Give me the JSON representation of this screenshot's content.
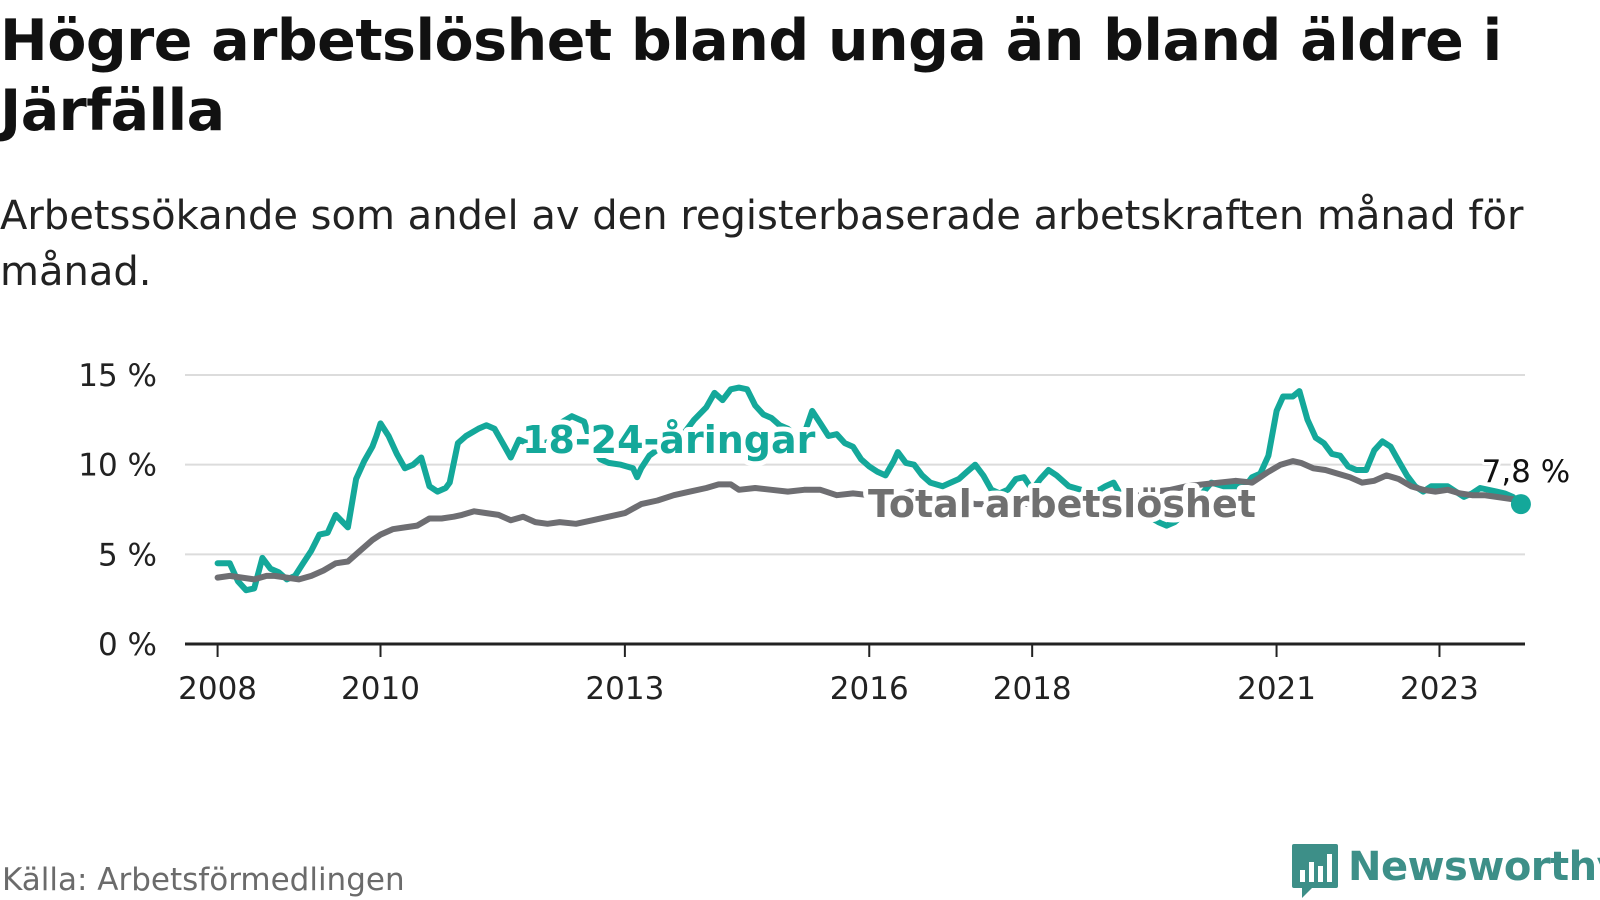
{
  "title": "Högre arbetslöshet bland unga än bland äldre i Järfälla",
  "subtitle": "Arbetssökande som andel av den registerbaserade arbetskraften månad för månad.",
  "source": "Källa: Arbetsförmedlingen",
  "brand": "Newsworthy",
  "colors": {
    "youth": "#14a89a",
    "total": "#6e6e72",
    "grid": "#dcdcdc",
    "axis": "#222222",
    "brand": "#3d8f88"
  },
  "chart_data": {
    "type": "line",
    "title": "Högre arbetslöshet bland unga än bland äldre i Järfälla",
    "xlabel": "",
    "ylabel": "",
    "xlim": [
      2007.6,
      2024.05
    ],
    "ylim": [
      0,
      15
    ],
    "y_ticks": [
      0,
      5,
      10,
      15
    ],
    "y_tick_labels": [
      "0 %",
      "5 %",
      "10 %",
      "15 %"
    ],
    "x_ticks": [
      2008,
      2010,
      2013,
      2016,
      2018,
      2021,
      2023
    ],
    "x_tick_labels": [
      "2008",
      "2010",
      "2013",
      "2016",
      "2018",
      "2021",
      "2023"
    ],
    "grid": true,
    "end_label": "7,8 %",
    "series": [
      {
        "name": "18-24-åringar",
        "points": [
          [
            2008.0,
            4.5
          ],
          [
            2008.15,
            4.5
          ],
          [
            2008.25,
            3.5
          ],
          [
            2008.35,
            3.0
          ],
          [
            2008.45,
            3.1
          ],
          [
            2008.55,
            4.8
          ],
          [
            2008.65,
            4.2
          ],
          [
            2008.75,
            4.0
          ],
          [
            2008.85,
            3.6
          ],
          [
            2008.95,
            3.8
          ],
          [
            2009.05,
            4.5
          ],
          [
            2009.15,
            5.2
          ],
          [
            2009.25,
            6.1
          ],
          [
            2009.35,
            6.2
          ],
          [
            2009.45,
            7.2
          ],
          [
            2009.6,
            6.5
          ],
          [
            2009.7,
            9.2
          ],
          [
            2009.8,
            10.2
          ],
          [
            2009.9,
            11.0
          ],
          [
            2009.95,
            11.6
          ],
          [
            2010.0,
            12.3
          ],
          [
            2010.1,
            11.6
          ],
          [
            2010.2,
            10.6
          ],
          [
            2010.3,
            9.8
          ],
          [
            2010.4,
            10.0
          ],
          [
            2010.5,
            10.4
          ],
          [
            2010.6,
            8.8
          ],
          [
            2010.7,
            8.5
          ],
          [
            2010.8,
            8.7
          ],
          [
            2010.85,
            9.0
          ],
          [
            2010.95,
            11.2
          ],
          [
            2011.05,
            11.6
          ],
          [
            2011.2,
            12.0
          ],
          [
            2011.3,
            12.2
          ],
          [
            2011.4,
            12.0
          ],
          [
            2011.5,
            11.2
          ],
          [
            2011.6,
            10.4
          ],
          [
            2011.7,
            11.4
          ],
          [
            2011.8,
            11.2
          ],
          [
            2011.9,
            11.4
          ],
          [
            2012.0,
            11.2
          ],
          [
            2012.1,
            11.3
          ],
          [
            2012.2,
            12.3
          ],
          [
            2012.35,
            12.7
          ],
          [
            2012.5,
            12.4
          ],
          [
            2012.6,
            11.0
          ],
          [
            2012.7,
            10.3
          ],
          [
            2012.8,
            10.1
          ],
          [
            2012.95,
            10.0
          ],
          [
            2013.1,
            9.8
          ],
          [
            2013.15,
            9.3
          ],
          [
            2013.2,
            9.8
          ],
          [
            2013.3,
            10.5
          ],
          [
            2013.45,
            11.0
          ],
          [
            2013.7,
            11.6
          ],
          [
            2013.85,
            12.5
          ],
          [
            2014.0,
            13.2
          ],
          [
            2014.1,
            14.0
          ],
          [
            2014.2,
            13.6
          ],
          [
            2014.3,
            14.2
          ],
          [
            2014.4,
            14.3
          ],
          [
            2014.5,
            14.2
          ],
          [
            2014.6,
            13.3
          ],
          [
            2014.7,
            12.8
          ],
          [
            2014.8,
            12.6
          ],
          [
            2014.9,
            12.2
          ],
          [
            2015.0,
            12.0
          ],
          [
            2015.1,
            11.6
          ],
          [
            2015.2,
            11.7
          ],
          [
            2015.3,
            13.0
          ],
          [
            2015.4,
            12.3
          ],
          [
            2015.5,
            11.6
          ],
          [
            2015.6,
            11.7
          ],
          [
            2015.7,
            11.2
          ],
          [
            2015.8,
            11.0
          ],
          [
            2015.9,
            10.3
          ],
          [
            2016.0,
            9.9
          ],
          [
            2016.1,
            9.6
          ],
          [
            2016.2,
            9.4
          ],
          [
            2016.3,
            10.2
          ],
          [
            2016.35,
            10.7
          ],
          [
            2016.45,
            10.1
          ],
          [
            2016.55,
            10.0
          ],
          [
            2016.65,
            9.4
          ],
          [
            2016.75,
            9.0
          ],
          [
            2016.9,
            8.8
          ],
          [
            2017.0,
            9.0
          ],
          [
            2017.1,
            9.2
          ],
          [
            2017.2,
            9.6
          ],
          [
            2017.3,
            10.0
          ],
          [
            2017.4,
            9.4
          ],
          [
            2017.5,
            8.6
          ],
          [
            2017.6,
            8.4
          ],
          [
            2017.7,
            8.6
          ],
          [
            2017.8,
            9.2
          ],
          [
            2017.9,
            9.3
          ],
          [
            2018.0,
            8.6
          ],
          [
            2018.1,
            9.2
          ],
          [
            2018.2,
            9.7
          ],
          [
            2018.3,
            9.4
          ],
          [
            2018.45,
            8.8
          ],
          [
            2018.6,
            8.6
          ],
          [
            2018.75,
            8.4
          ],
          [
            2018.9,
            8.8
          ],
          [
            2019.0,
            9.0
          ],
          [
            2019.1,
            8.2
          ],
          [
            2019.25,
            7.6
          ],
          [
            2019.4,
            7.2
          ],
          [
            2019.55,
            6.8
          ],
          [
            2019.65,
            6.6
          ],
          [
            2019.75,
            6.8
          ],
          [
            2019.9,
            7.4
          ],
          [
            2020.05,
            8.2
          ],
          [
            2020.2,
            9.0
          ],
          [
            2020.35,
            8.8
          ],
          [
            2020.5,
            8.8
          ],
          [
            2020.6,
            8.7
          ],
          [
            2020.7,
            9.3
          ],
          [
            2020.8,
            9.5
          ],
          [
            2020.9,
            10.5
          ],
          [
            2021.0,
            13.0
          ],
          [
            2021.08,
            13.8
          ],
          [
            2021.2,
            13.8
          ],
          [
            2021.28,
            14.1
          ],
          [
            2021.38,
            12.5
          ],
          [
            2021.48,
            11.5
          ],
          [
            2021.58,
            11.2
          ],
          [
            2021.68,
            10.6
          ],
          [
            2021.78,
            10.5
          ],
          [
            2021.88,
            9.9
          ],
          [
            2021.98,
            9.7
          ],
          [
            2022.1,
            9.7
          ],
          [
            2022.2,
            10.8
          ],
          [
            2022.3,
            11.3
          ],
          [
            2022.4,
            11.0
          ],
          [
            2022.5,
            10.2
          ],
          [
            2022.6,
            9.4
          ],
          [
            2022.7,
            8.8
          ],
          [
            2022.8,
            8.5
          ],
          [
            2022.9,
            8.8
          ],
          [
            2023.0,
            8.8
          ],
          [
            2023.1,
            8.8
          ],
          [
            2023.2,
            8.5
          ],
          [
            2023.3,
            8.2
          ],
          [
            2023.4,
            8.4
          ],
          [
            2023.5,
            8.7
          ],
          [
            2023.6,
            8.6
          ],
          [
            2023.7,
            8.5
          ],
          [
            2023.8,
            8.4
          ],
          [
            2023.9,
            8.2
          ],
          [
            2024.0,
            7.8
          ]
        ]
      },
      {
        "name": "Total arbetslöshet",
        "points": [
          [
            2008.0,
            3.7
          ],
          [
            2008.15,
            3.8
          ],
          [
            2008.3,
            3.7
          ],
          [
            2008.45,
            3.6
          ],
          [
            2008.6,
            3.8
          ],
          [
            2008.7,
            3.8
          ],
          [
            2008.85,
            3.7
          ],
          [
            2009.0,
            3.6
          ],
          [
            2009.15,
            3.8
          ],
          [
            2009.3,
            4.1
          ],
          [
            2009.45,
            4.5
          ],
          [
            2009.6,
            4.6
          ],
          [
            2009.75,
            5.2
          ],
          [
            2009.9,
            5.8
          ],
          [
            2010.0,
            6.1
          ],
          [
            2010.15,
            6.4
          ],
          [
            2010.3,
            6.5
          ],
          [
            2010.45,
            6.6
          ],
          [
            2010.6,
            7.0
          ],
          [
            2010.75,
            7.0
          ],
          [
            2010.9,
            7.1
          ],
          [
            2011.0,
            7.2
          ],
          [
            2011.15,
            7.4
          ],
          [
            2011.3,
            7.3
          ],
          [
            2011.45,
            7.2
          ],
          [
            2011.6,
            6.9
          ],
          [
            2011.75,
            7.1
          ],
          [
            2011.9,
            6.8
          ],
          [
            2012.05,
            6.7
          ],
          [
            2012.2,
            6.8
          ],
          [
            2012.4,
            6.7
          ],
          [
            2012.6,
            6.9
          ],
          [
            2012.8,
            7.1
          ],
          [
            2013.0,
            7.3
          ],
          [
            2013.2,
            7.8
          ],
          [
            2013.4,
            8.0
          ],
          [
            2013.6,
            8.3
          ],
          [
            2013.8,
            8.5
          ],
          [
            2014.0,
            8.7
          ],
          [
            2014.15,
            8.9
          ],
          [
            2014.3,
            8.9
          ],
          [
            2014.4,
            8.6
          ],
          [
            2014.6,
            8.7
          ],
          [
            2014.8,
            8.6
          ],
          [
            2015.0,
            8.5
          ],
          [
            2015.2,
            8.6
          ],
          [
            2015.4,
            8.6
          ],
          [
            2015.6,
            8.3
          ],
          [
            2015.8,
            8.4
          ],
          [
            2016.0,
            8.3
          ],
          [
            2016.3,
            8.2
          ],
          [
            2016.5,
            8.5
          ],
          [
            2016.7,
            8.4
          ],
          [
            2016.9,
            8.2
          ],
          [
            2017.1,
            8.0
          ],
          [
            2017.3,
            7.8
          ],
          [
            2017.5,
            7.8
          ],
          [
            2017.7,
            7.9
          ],
          [
            2017.9,
            7.8
          ],
          [
            2018.1,
            7.9
          ],
          [
            2018.3,
            8.0
          ],
          [
            2018.5,
            8.1
          ],
          [
            2018.7,
            8.0
          ],
          [
            2018.9,
            8.1
          ],
          [
            2019.1,
            8.2
          ],
          [
            2019.3,
            8.3
          ],
          [
            2019.5,
            8.5
          ],
          [
            2019.7,
            8.6
          ],
          [
            2019.9,
            8.8
          ],
          [
            2020.1,
            8.9
          ],
          [
            2020.3,
            9.0
          ],
          [
            2020.5,
            9.1
          ],
          [
            2020.7,
            9.0
          ],
          [
            2020.9,
            9.6
          ],
          [
            2021.05,
            10.0
          ],
          [
            2021.2,
            10.2
          ],
          [
            2021.3,
            10.1
          ],
          [
            2021.45,
            9.8
          ],
          [
            2021.6,
            9.7
          ],
          [
            2021.75,
            9.5
          ],
          [
            2021.9,
            9.3
          ],
          [
            2022.05,
            9.0
          ],
          [
            2022.2,
            9.1
          ],
          [
            2022.35,
            9.4
          ],
          [
            2022.5,
            9.2
          ],
          [
            2022.65,
            8.8
          ],
          [
            2022.8,
            8.6
          ],
          [
            2022.95,
            8.5
          ],
          [
            2023.1,
            8.6
          ],
          [
            2023.25,
            8.4
          ],
          [
            2023.4,
            8.3
          ],
          [
            2023.55,
            8.3
          ],
          [
            2023.7,
            8.2
          ],
          [
            2023.85,
            8.1
          ],
          [
            2024.0,
            8.0
          ]
        ]
      }
    ],
    "annotations": [
      {
        "text": "18-24-åringar",
        "series": "18-24-åringar"
      },
      {
        "text": "Total arbetslöshet",
        "series": "Total arbetslöshet"
      }
    ]
  }
}
